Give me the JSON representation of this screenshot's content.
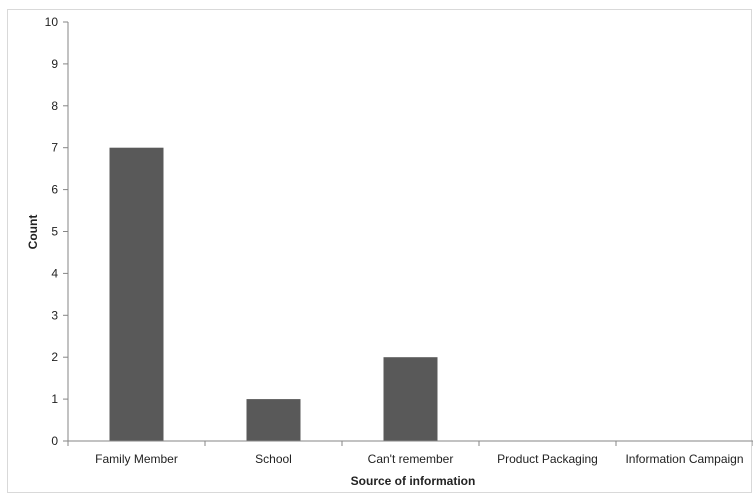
{
  "chart_data": {
    "type": "bar",
    "title": "",
    "xlabel": "Source of information",
    "ylabel": "Count",
    "categories": [
      "Family Member",
      "School",
      "Can't remember",
      "Product Packaging",
      "Information Campaign"
    ],
    "values": [
      7,
      1,
      2,
      0,
      0
    ],
    "ylim": [
      0,
      10
    ],
    "yticks": [
      "0",
      "1",
      "2",
      "3",
      "4",
      "5",
      "6",
      "7",
      "8",
      "9",
      "10"
    ],
    "grid": false,
    "legend": "none",
    "bar_color": "#595959"
  }
}
